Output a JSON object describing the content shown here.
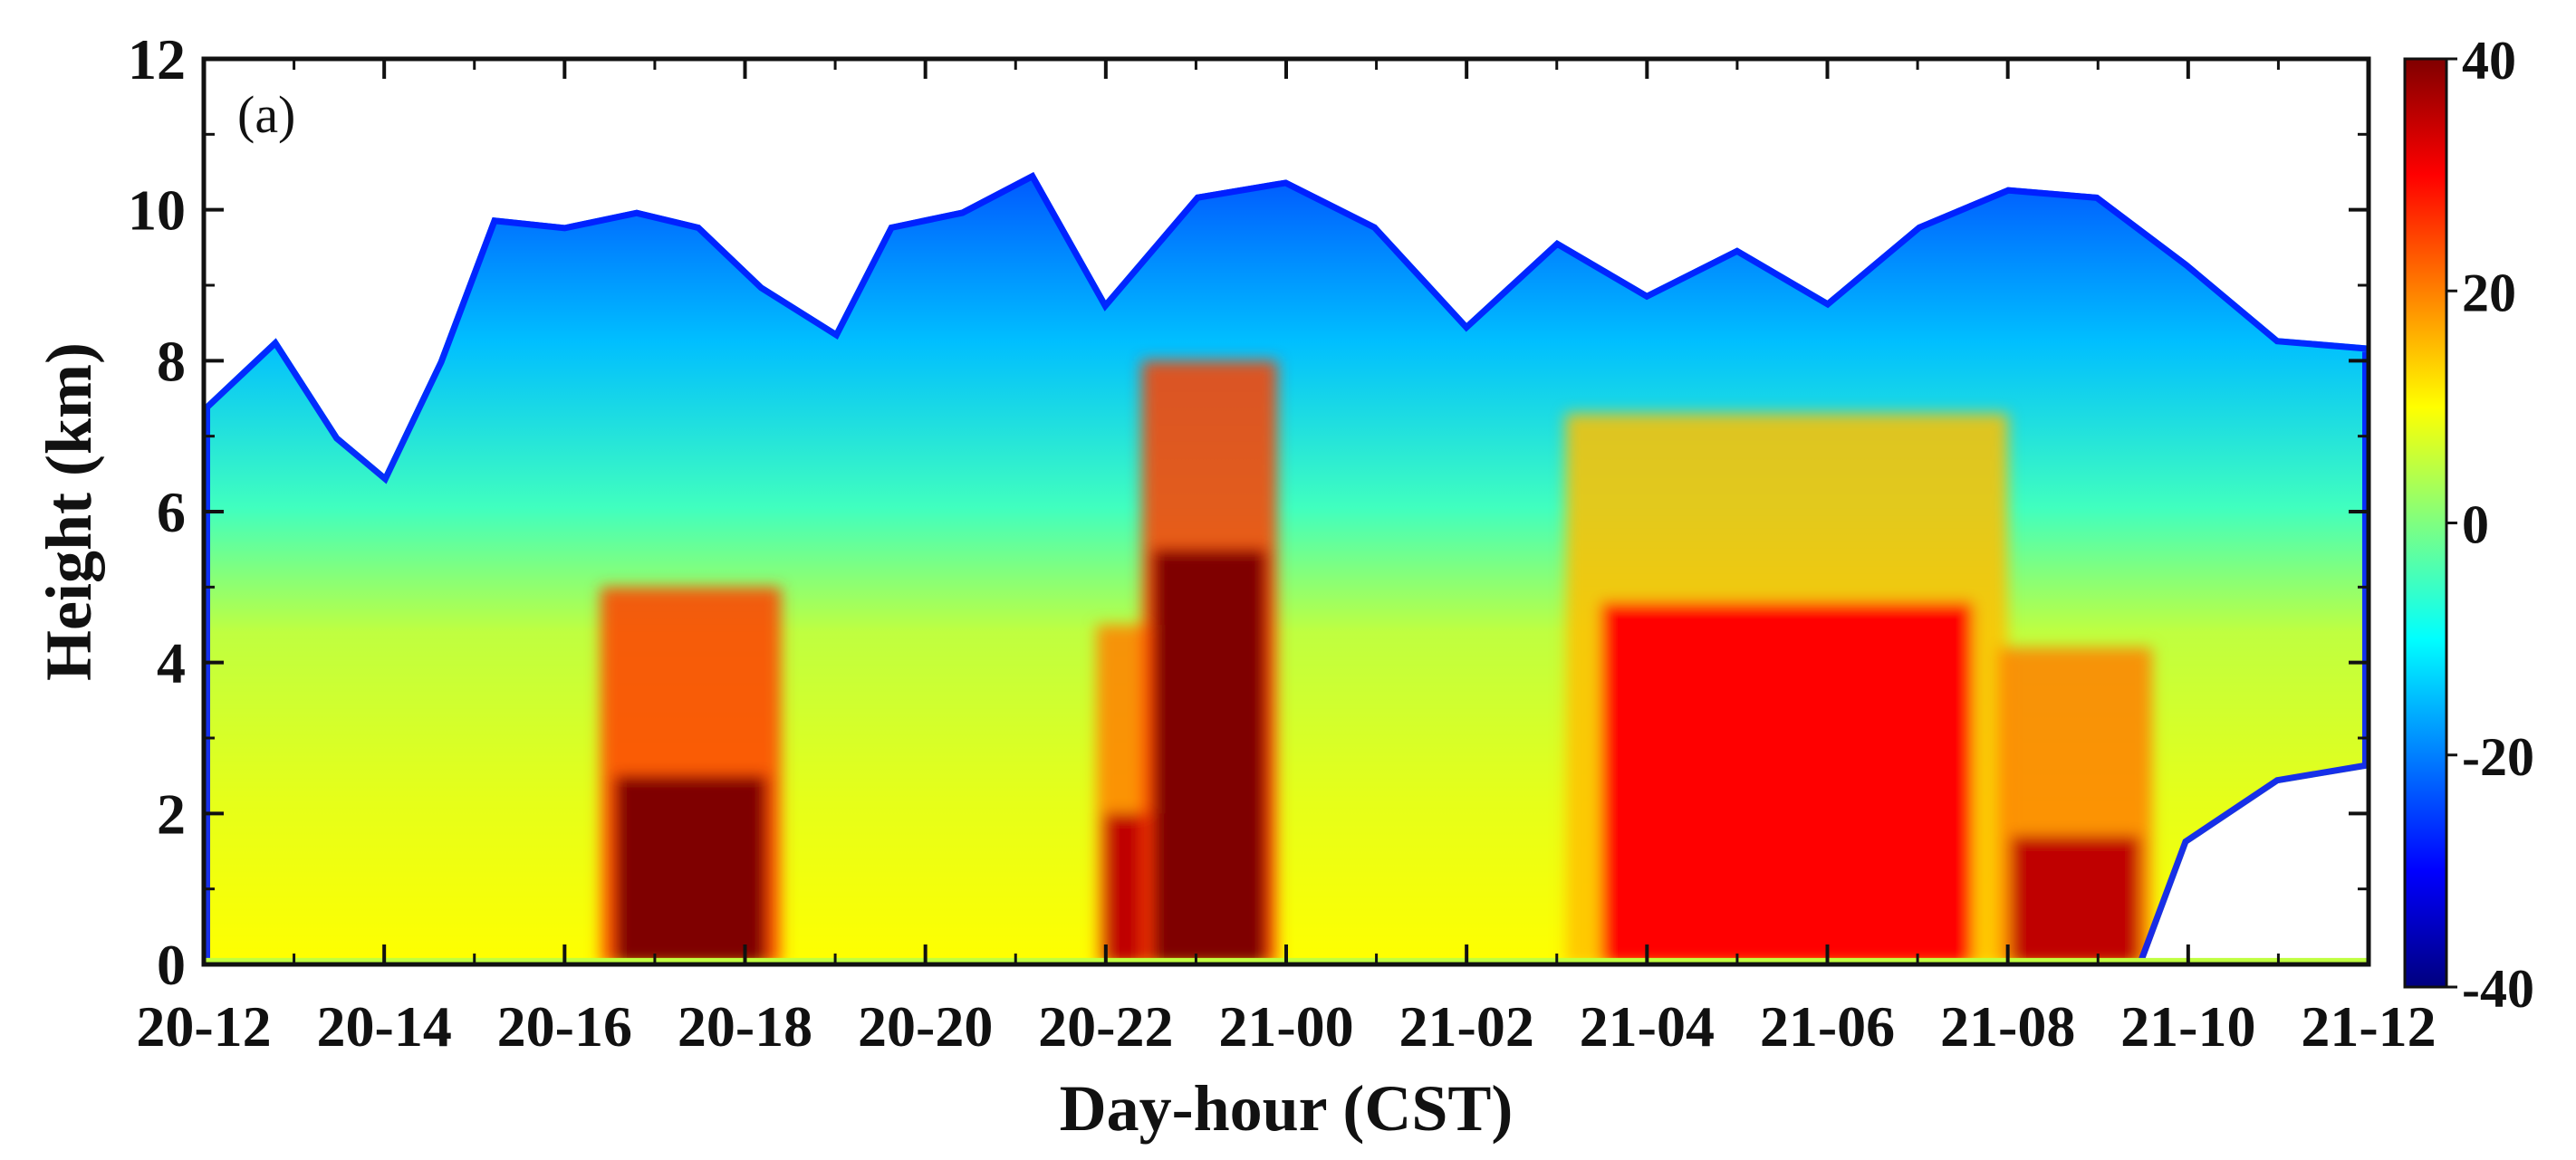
{
  "panel_label": "(a)",
  "chart_data": {
    "type": "heatmap",
    "title": "",
    "xlabel": "Day-hour (CST)",
    "ylabel": "Height (km)",
    "x_ticks": [
      "20-12",
      "20-14",
      "20-16",
      "20-18",
      "20-20",
      "20-22",
      "21-00",
      "21-02",
      "21-04",
      "21-06",
      "21-08",
      "21-10",
      "21-12"
    ],
    "xlim_hours": [
      0,
      24
    ],
    "y_ticks": [
      0,
      2,
      4,
      6,
      8,
      10,
      12
    ],
    "ylim": [
      0,
      12
    ],
    "colorbar": {
      "ticks": [
        40,
        20,
        0,
        -20,
        -40
      ],
      "range": [
        -40,
        40
      ],
      "colormap": "jet",
      "colors": [
        "#00007f",
        "#0000ff",
        "#00ffff",
        "#ffff00",
        "#ff0000",
        "#7f0000"
      ]
    },
    "grid": false,
    "echo_top_km": [
      [
        0.0,
        7.4
      ],
      [
        0.8,
        8.3
      ],
      [
        1.5,
        7.0
      ],
      [
        2.0,
        6.5
      ],
      [
        2.6,
        8.0
      ],
      [
        3.2,
        9.9
      ],
      [
        4.0,
        9.8
      ],
      [
        4.8,
        10.0
      ],
      [
        5.5,
        9.8
      ],
      [
        6.2,
        9.0
      ],
      [
        7.0,
        8.4
      ],
      [
        7.6,
        9.8
      ],
      [
        8.4,
        10.0
      ],
      [
        9.2,
        10.5
      ],
      [
        10.0,
        8.8
      ],
      [
        11.0,
        10.2
      ],
      [
        12.0,
        10.4
      ],
      [
        13.0,
        9.8
      ],
      [
        14.0,
        8.5
      ],
      [
        15.0,
        9.6
      ],
      [
        16.0,
        8.9
      ],
      [
        17.0,
        9.5
      ],
      [
        18.0,
        8.8
      ],
      [
        19.0,
        9.8
      ],
      [
        20.0,
        10.3
      ],
      [
        21.0,
        10.2
      ],
      [
        22.0,
        9.3
      ],
      [
        23.0,
        8.3
      ],
      [
        24.0,
        8.2
      ]
    ],
    "base_km": [
      [
        0.0,
        0.0
      ],
      [
        2.0,
        0.0
      ],
      [
        4.0,
        0.0
      ],
      [
        6.0,
        0.0
      ],
      [
        8.0,
        0.0
      ],
      [
        10.0,
        0.0
      ],
      [
        12.0,
        0.0
      ],
      [
        14.0,
        0.0
      ],
      [
        16.0,
        0.0
      ],
      [
        18.0,
        0.0
      ],
      [
        20.0,
        0.0
      ],
      [
        21.5,
        0.0
      ],
      [
        22.0,
        1.6
      ],
      [
        23.0,
        2.4
      ],
      [
        24.0,
        2.6
      ]
    ],
    "strong_cells": [
      {
        "t_start": 4.4,
        "t_end": 6.4,
        "top_km": 2.5,
        "peak_dbz": 40
      },
      {
        "t_start": 9.9,
        "t_end": 11.0,
        "top_km": 2.0,
        "peak_dbz": 35
      },
      {
        "t_start": 10.4,
        "t_end": 11.9,
        "top_km": 5.5,
        "peak_dbz": 40
      },
      {
        "t_start": 15.1,
        "t_end": 20.0,
        "top_km": 4.8,
        "peak_dbz": 30
      },
      {
        "t_start": 19.9,
        "t_end": 21.6,
        "top_km": 1.7,
        "peak_dbz": 35
      }
    ]
  }
}
